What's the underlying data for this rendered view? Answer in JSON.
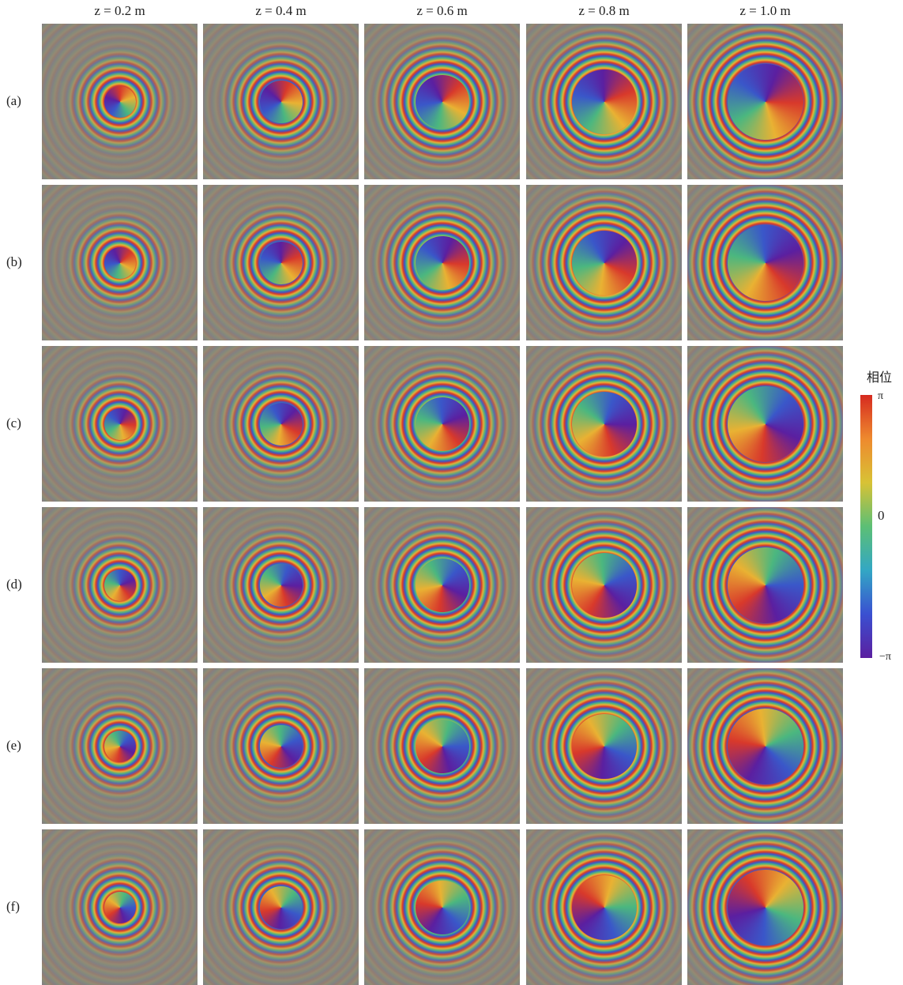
{
  "columns": [
    "z = 0.2 m",
    "z = 0.4 m",
    "z = 0.6 m",
    "z = 0.8 m",
    "z = 1.0 m"
  ],
  "rows": [
    "(a)",
    "(b)",
    "(c)",
    "(d)",
    "(e)",
    "(f)"
  ],
  "colorbar": {
    "title": "相位",
    "labels": [
      "π",
      "0",
      "−π"
    ]
  }
}
